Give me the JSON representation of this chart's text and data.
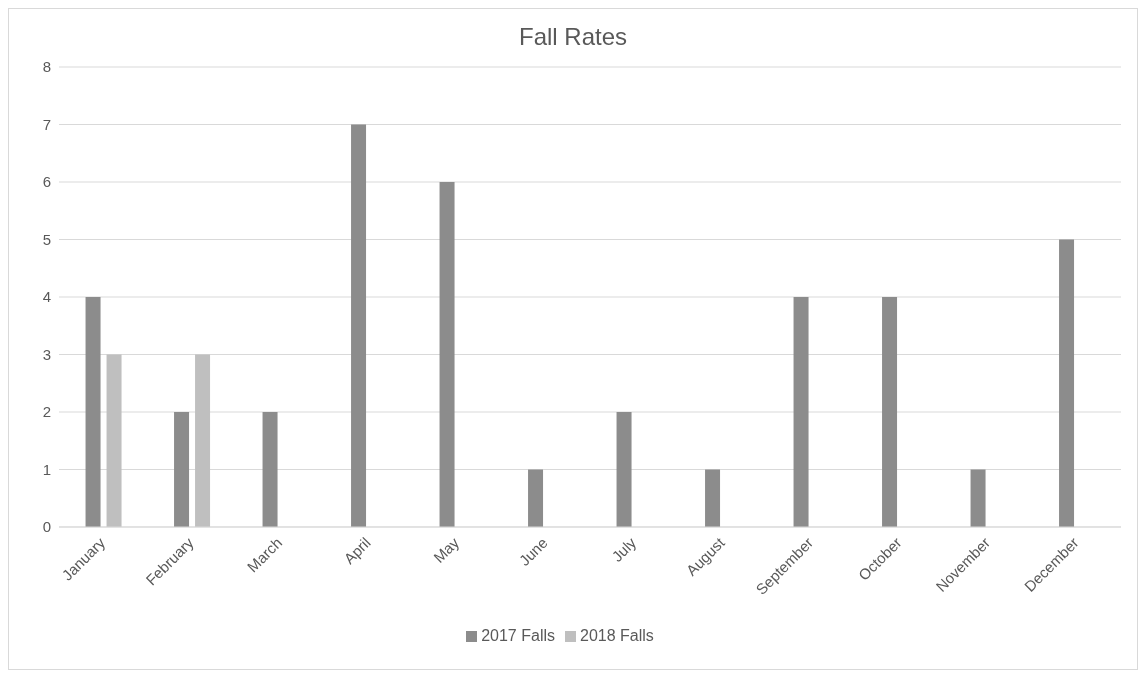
{
  "chart_data": {
    "type": "bar",
    "title": "Fall Rates",
    "categories": [
      "January",
      "February",
      "March",
      "April",
      "May",
      "June",
      "July",
      "August",
      "September",
      "October",
      "November",
      "December"
    ],
    "series": [
      {
        "name": "2017 Falls",
        "color": "#8c8c8c",
        "values": [
          4,
          2,
          2,
          7,
          6,
          1,
          2,
          1,
          4,
          4,
          1,
          5
        ]
      },
      {
        "name": "2018 Falls",
        "color": "#bfbfbf",
        "values": [
          3,
          3,
          null,
          null,
          null,
          null,
          null,
          null,
          null,
          null,
          null,
          null
        ]
      }
    ],
    "ylim": [
      0,
      8
    ],
    "yticks": [
      0,
      1,
      2,
      3,
      4,
      5,
      6,
      7,
      8
    ],
    "grid": "y",
    "legend": "bottom"
  }
}
